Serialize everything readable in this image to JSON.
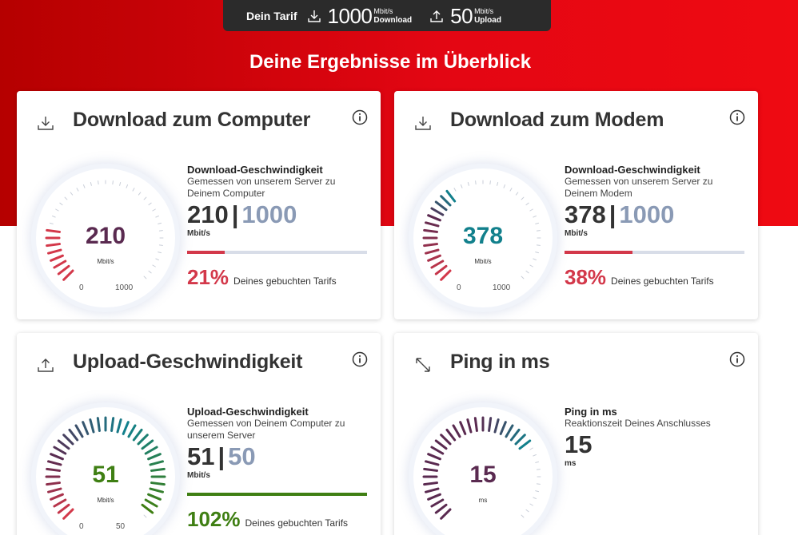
{
  "tariff": {
    "label": "Dein Tarif",
    "download_value": "1000",
    "download_unit": "Mbit/s",
    "download_label": "Download",
    "upload_value": "50",
    "upload_unit": "Mbit/s",
    "upload_label": "Upload"
  },
  "headline": "Deine Ergebnisse im Überblick",
  "colors": {
    "brand_red": "#e30613",
    "dark_red": "#b50000",
    "value_purple": "#5a2a50",
    "teal": "#12808c",
    "green": "#3f7f13",
    "pct_red": "#d3384a",
    "muted_blue": "#8a9ab5"
  },
  "cards": {
    "download_computer": {
      "icon": "download-icon",
      "title": "Download zum Computer",
      "gauge_value": "210",
      "gauge_unit": "Mbit/s",
      "gauge_min": "0",
      "gauge_max": "1000",
      "fraction": 0.21,
      "stat_title": "Download-Geschwindigkeit",
      "stat_desc": "Gemessen von unserem Server zu Deinem Computer",
      "value": "210",
      "separator": "|",
      "max": "1000",
      "unit": "Mbit/s",
      "percent": "21%",
      "percent_label": "Deines gebuchten Tarifs"
    },
    "download_modem": {
      "icon": "download-icon",
      "title": "Download zum Modem",
      "gauge_value": "378",
      "gauge_unit": "Mbit/s",
      "gauge_min": "0",
      "gauge_max": "1000",
      "fraction": 0.378,
      "stat_title": "Download-Geschwindigkeit",
      "stat_desc": "Gemessen von unserem Server zu Deinem Modem",
      "value": "378",
      "separator": "|",
      "max": "1000",
      "unit": "Mbit/s",
      "percent": "38%",
      "percent_label": "Deines gebuchten Tarifs"
    },
    "upload": {
      "icon": "upload-icon",
      "title": "Upload-Geschwindigkeit",
      "gauge_value": "51",
      "gauge_unit": "Mbit/s",
      "gauge_min": "0",
      "gauge_max": "50",
      "fraction": 1.02,
      "stat_title": "Upload-Geschwindigkeit",
      "stat_desc": "Gemessen von Deinem Computer zu unserem Server",
      "value": "51",
      "separator": "|",
      "max": "50",
      "unit": "Mbit/s",
      "percent": "102%",
      "percent_label": "Deines gebuchten Tarifs"
    },
    "ping": {
      "icon": "ping-arrows-icon",
      "title": "Ping in ms",
      "gauge_value": "15",
      "gauge_unit": "ms",
      "stat_title": "Ping in ms",
      "stat_desc": "Reaktionszeit Deines Anschlusses",
      "value": "15",
      "unit": "ms"
    }
  }
}
